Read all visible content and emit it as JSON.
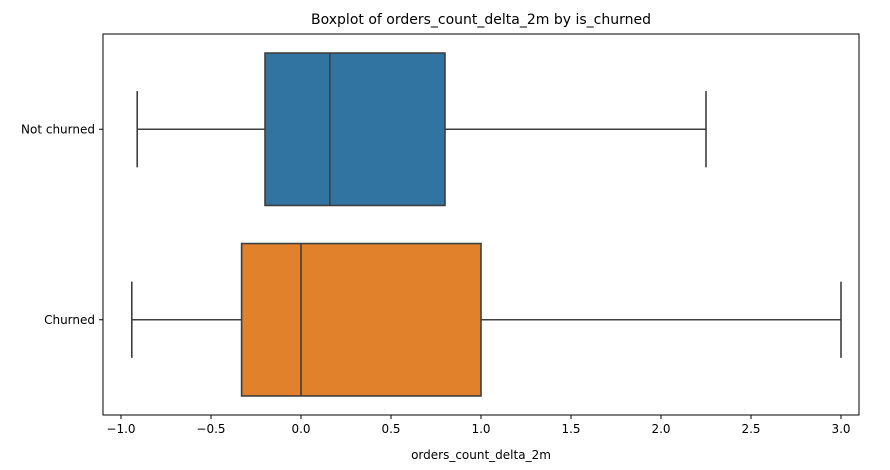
{
  "chart_data": {
    "type": "boxplot",
    "orientation": "horizontal",
    "title": "Boxplot of orders_count_delta_2m by is_churned",
    "xlabel": "orders_count_delta_2m",
    "ylabel": "",
    "xlim": [
      -1.1,
      3.1
    ],
    "xticks": [
      -1.0,
      -0.5,
      0.0,
      0.5,
      1.0,
      1.5,
      2.0,
      2.5,
      3.0
    ],
    "xtick_labels": [
      "−1.0",
      "−0.5",
      "0.0",
      "0.5",
      "1.0",
      "1.5",
      "2.0",
      "2.5",
      "3.0"
    ],
    "grid": false,
    "categories": [
      "Not churned",
      "Churned"
    ],
    "boxes": [
      {
        "category": "Not churned",
        "whisker_low": -0.91,
        "q1": -0.2,
        "median": 0.16,
        "q3": 0.8,
        "whisker_high": 2.25,
        "color": "#3274a1"
      },
      {
        "category": "Churned",
        "whisker_low": -0.94,
        "q1": -0.33,
        "median": 0.0,
        "q3": 1.0,
        "whisker_high": 3.0,
        "color": "#e1812c"
      }
    ],
    "line_color": "#3f3f3f"
  }
}
